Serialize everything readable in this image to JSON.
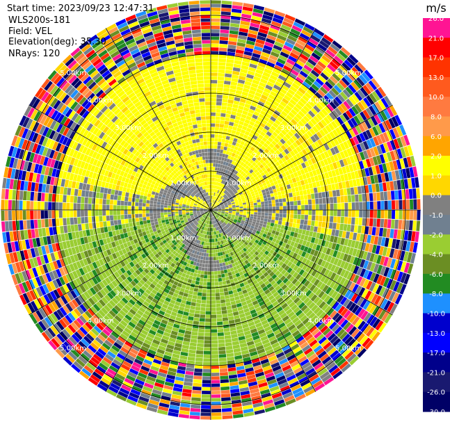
{
  "info": {
    "start_time": "Start time: 2023/09/23 12:47:31",
    "instrument": "WLS200s-181",
    "field": "Field: VEL",
    "elevation": "Elevation(deg): 35.30",
    "nrays": "NRays: 120"
  },
  "colorbar": {
    "unit": "m/s",
    "labels": [
      "26.0",
      "21.0",
      "17.0",
      "13.0",
      "10.0",
      "8.0",
      "6.0",
      "2.0",
      "1.0",
      "0.0",
      "-1.0",
      "-2.0",
      "-4.0",
      "-6.0",
      "-8.0",
      "-10.0",
      "-13.0",
      "-17.0",
      "-21.0",
      "-26.0",
      "-30.0"
    ],
    "colors": [
      "#ff1493",
      "#ff0000",
      "#ff3300",
      "#ff5a1e",
      "#ff7a40",
      "#ff9a4a",
      "#ffa500",
      "#ffff00",
      "#ffd700",
      "#808080",
      "#708090",
      "#9acd32",
      "#6b8e23",
      "#228b22",
      "#1e90ff",
      "#0000cd",
      "#0000ff",
      "#00008b",
      "#191970",
      "#000066"
    ]
  },
  "chart_data": {
    "type": "heatmap",
    "projection": "polar PPI (plan position indicator)",
    "field": "VEL",
    "units": "m/s",
    "range_rings_km": [
      1.0,
      2.0,
      3.0,
      4.0,
      5.0
    ],
    "ring_labels": [
      "1.00km",
      "2.00km",
      "3.00km",
      "4.00km",
      "5.00km"
    ],
    "nrays": 120,
    "elevation_deg": 35.3,
    "azimuth_spokes_deg": [
      0,
      30,
      60,
      90,
      120,
      150,
      180,
      210,
      240,
      270,
      300,
      330
    ],
    "pattern": {
      "north_sector": "positive velocity 1–6 m/s (yellow/gold)",
      "south_sector": "negative velocity -1 to -6 m/s (green)",
      "near_range_spiral": "near-zero velocity (gray) bands",
      "beyond_km": 4.0,
      "beyond_description": "noisy, randomized colors across full scale"
    }
  }
}
